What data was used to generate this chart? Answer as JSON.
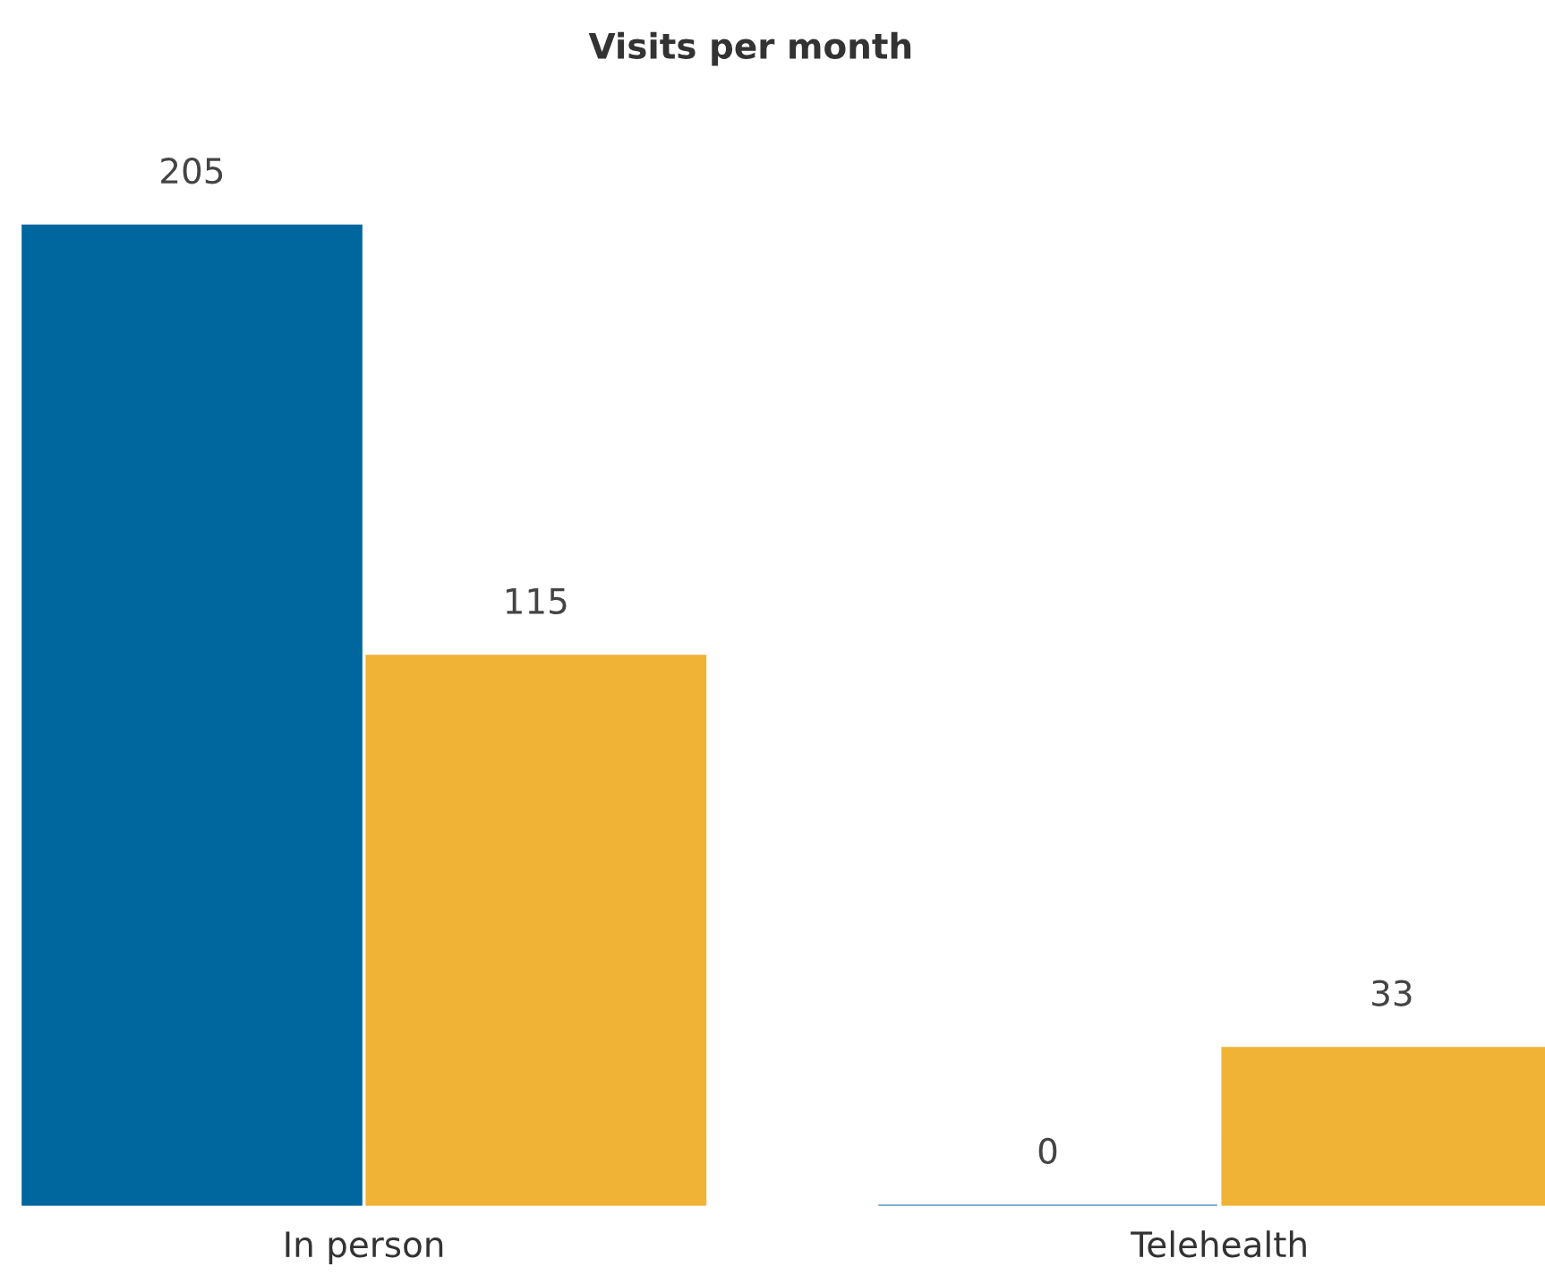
{
  "chart_data": {
    "type": "bar",
    "title": "Visits per month",
    "categories": [
      "In person",
      "Telehealth"
    ],
    "series": [
      {
        "color": "#00679e",
        "values": [
          205,
          0
        ]
      },
      {
        "color": "#f0b336",
        "values": [
          115,
          33
        ]
      }
    ],
    "data_labels": true,
    "grid": false,
    "legend": false
  }
}
